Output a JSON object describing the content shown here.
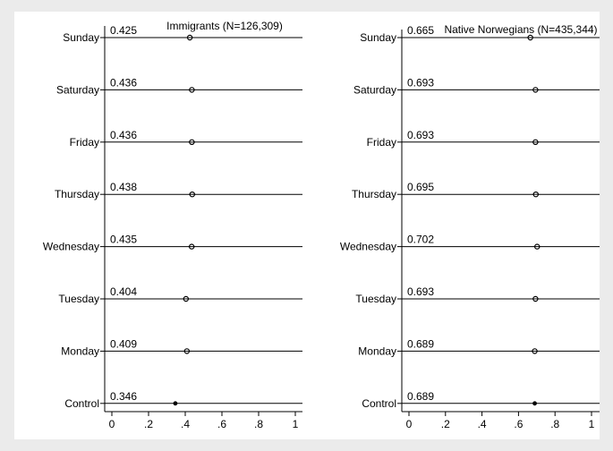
{
  "chart_data": [
    {
      "type": "scatter",
      "title": "Immigrants (N=126,309)",
      "categories": [
        "Control",
        "Monday",
        "Tuesday",
        "Wednesday",
        "Thursday",
        "Friday",
        "Saturday",
        "Sunday"
      ],
      "values": [
        0.346,
        0.409,
        0.404,
        0.435,
        0.438,
        0.436,
        0.436,
        0.425
      ],
      "value_labels": [
        "0.346",
        "0.409",
        "0.404",
        "0.435",
        "0.438",
        "0.436",
        "0.436",
        "0.425"
      ],
      "x_ticks": [
        "0",
        ".2",
        ".4",
        ".6",
        ".8",
        "1"
      ],
      "xlim": [
        0,
        1
      ],
      "xlabel": "",
      "ylabel": "",
      "grid": true,
      "legend": "none"
    },
    {
      "type": "scatter",
      "title": "Native Norwegians (N=435,344)",
      "categories": [
        "Control",
        "Monday",
        "Tuesday",
        "Wednesday",
        "Thursday",
        "Friday",
        "Saturday",
        "Sunday"
      ],
      "values": [
        0.689,
        0.689,
        0.693,
        0.702,
        0.695,
        0.693,
        0.693,
        0.665
      ],
      "value_labels": [
        "0.689",
        "0.689",
        "0.693",
        "0.702",
        "0.695",
        "0.693",
        "0.693",
        "0.665"
      ],
      "x_ticks": [
        "0",
        ".2",
        ".4",
        ".6",
        ".8",
        "1"
      ],
      "xlim": [
        0,
        1
      ],
      "xlabel": "",
      "ylabel": "",
      "grid": true,
      "legend": "none"
    }
  ],
  "colors": {
    "background": "#ebebeb",
    "plot_area": "#ffffff",
    "line": "#000000"
  }
}
